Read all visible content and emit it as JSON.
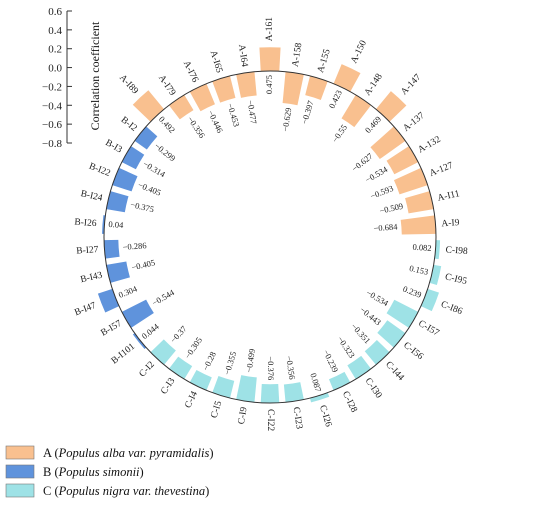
{
  "chart_data": {
    "type": "bar",
    "layout": "radial",
    "ylabel": "Correlation coefficient",
    "ylim": [
      -0.8,
      0.6
    ],
    "y_ticks": [
      "0.6",
      "0.4",
      "0.2",
      "0.0",
      "−0.2",
      "−0.4",
      "−0.6",
      "−0.8"
    ],
    "y_tick_values": [
      0.6,
      0.4,
      0.2,
      0.0,
      -0.2,
      -0.4,
      -0.6,
      -0.8
    ],
    "legend": [
      {
        "key": "A",
        "letter": "A (",
        "species": "Populus alba var. pyramidalis",
        "close": ")",
        "color": "#f9c08f"
      },
      {
        "key": "B",
        "letter": "B (",
        "species": "Populus simonii",
        "close": ")",
        "color": "#5f93dc"
      },
      {
        "key": "C",
        "letter": "C (",
        "species": "Populus nigra var. thevestina",
        "close": ")",
        "color": "#9ee2e6"
      }
    ],
    "legend_placement": "bottom-left",
    "grid": false,
    "categories": [
      "A-161",
      "A-158",
      "A-155",
      "A-150",
      "A-148",
      "A-147",
      "A-137",
      "A-132",
      "A-127",
      "A-I11",
      "A-I9",
      "C-I98",
      "C-I95",
      "C-I86",
      "C-I57",
      "C-I56",
      "C-I44",
      "C-I30",
      "C-I28",
      "C-I26",
      "C-I23",
      "C-I22",
      "C-I9",
      "C-I5",
      "C-I4",
      "C-I3",
      "C-I2",
      "B-I101",
      "B-I57",
      "B-I47",
      "B-I43",
      "B-I27",
      "B-I26",
      "B-I24",
      "B-I22",
      "B-I3",
      "B-I2",
      "A-I89",
      "A-I79",
      "A-I76",
      "A-I65",
      "A-I64"
    ],
    "groups": [
      "A",
      "A",
      "A",
      "A",
      "A",
      "A",
      "A",
      "A",
      "A",
      "A",
      "A",
      "C",
      "C",
      "C",
      "C",
      "C",
      "C",
      "C",
      "C",
      "C",
      "C",
      "C",
      "C",
      "C",
      "C",
      "C",
      "C",
      "B",
      "B",
      "B",
      "B",
      "B",
      "B",
      "B",
      "B",
      "B",
      "B",
      "A",
      "A",
      "A",
      "A",
      "A"
    ],
    "values": [
      0.475,
      -0.629,
      -0.397,
      0.423,
      -0.55,
      0.469,
      -0.627,
      -0.534,
      -0.593,
      -0.509,
      -0.684,
      0.082,
      0.153,
      0.239,
      -0.534,
      -0.443,
      -0.351,
      -0.323,
      -0.239,
      0.087,
      -0.356,
      -0.376,
      -0.499,
      -0.355,
      -0.28,
      -0.305,
      -0.37,
      0.044,
      -0.544,
      0.304,
      -0.405,
      -0.286,
      0.04,
      -0.375,
      -0.405,
      -0.314,
      -0.299,
      0.492,
      -0.356,
      -0.446,
      -0.453,
      -0.477
    ],
    "value_labels": [
      "0.475",
      "−0.629",
      "−0.397",
      "0.423",
      "−0.55",
      "0.469",
      "−0.627",
      "−0.534",
      "−0.593",
      "−0.509",
      "−0.684",
      "0.082",
      "0.153",
      "0.239",
      "−0.534",
      "−0.443",
      "−0.351",
      "−0.323",
      "−0.239",
      "0.087",
      "−0.356",
      "−0.376",
      "−0.499",
      "−0.355",
      "−0.28",
      "−0.305",
      "−0.37",
      "0.044",
      "−0.544",
      "0.304",
      "−0.405",
      "−0.286",
      "0.04",
      "−0.375",
      "−0.405",
      "−0.314",
      "−0.299",
      "0.492",
      "−0.356",
      "−0.446",
      "−0.453",
      "−0.477"
    ]
  }
}
